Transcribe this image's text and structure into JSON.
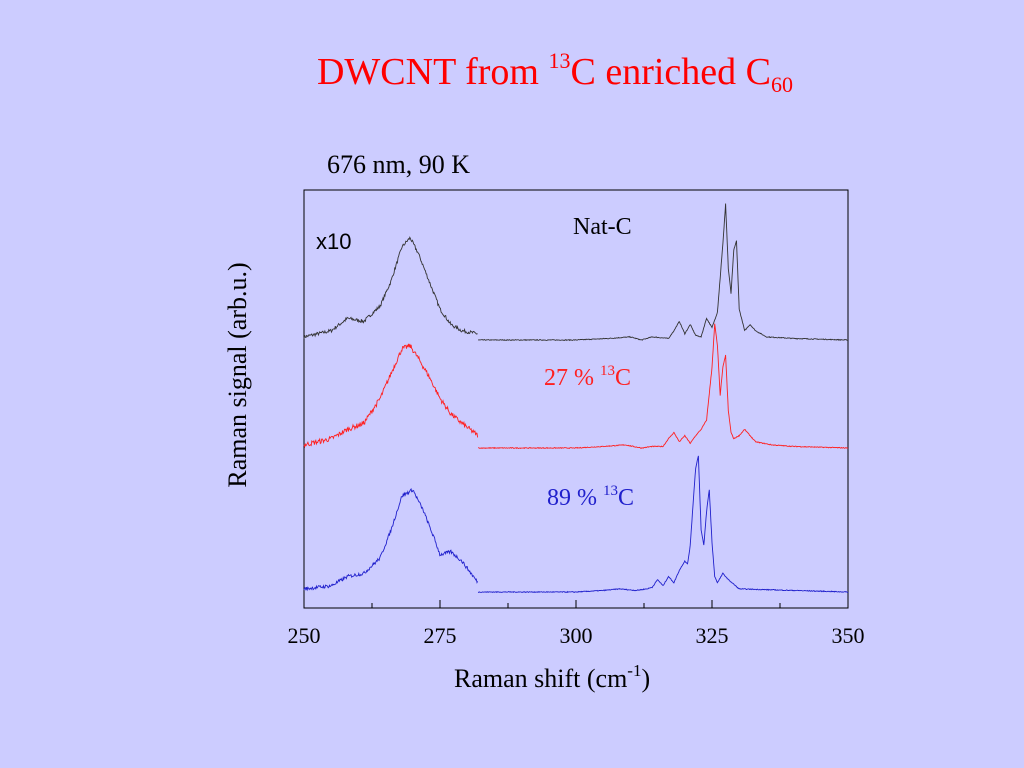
{
  "slide": {
    "title_main": "DWCNT from ",
    "title_sup": "13",
    "title_mid": "C enriched C",
    "title_sub": "60"
  },
  "chart_data": {
    "type": "line",
    "title": "676 nm, 90 K",
    "xlabel": "Raman shift (cm",
    "xlabel_sup": "-1",
    "xlabel_end": ")",
    "ylabel": "Raman signal (arb.u.)",
    "xlim": [
      250,
      350
    ],
    "x_ticks": [
      "250",
      "275",
      "300",
      "325",
      "350"
    ],
    "annotation_scale": "x10",
    "colors": {
      "Nat-C": "#333333",
      "27": "#ff2020",
      "89": "#2020cc"
    },
    "series": [
      {
        "name": "Nat-C",
        "label_prefix": "",
        "label_sup": "",
        "label_suffix": "Nat-C",
        "low_region_x10": {
          "x": [
            250,
            255,
            258,
            261,
            264,
            266,
            268,
            269.5,
            271,
            273,
            275,
            277,
            279,
            282
          ],
          "y": [
            2,
            6,
            14,
            12,
            22,
            38,
            60,
            66,
            56,
            38,
            20,
            10,
            6,
            4
          ]
        },
        "high_region": {
          "x": [
            282,
            300,
            306,
            310,
            312,
            314,
            317,
            318,
            319,
            320,
            321,
            322,
            323,
            324,
            325,
            326,
            326.5,
            327,
            327.5,
            328,
            328.5,
            329,
            329.5,
            330,
            331,
            332,
            333,
            335,
            340,
            350
          ],
          "y": [
            0,
            0,
            1,
            2,
            0,
            2,
            1,
            6,
            12,
            4,
            10,
            3,
            2,
            14,
            8,
            18,
            40,
            62,
            88,
            46,
            30,
            58,
            64,
            20,
            6,
            10,
            6,
            2,
            1,
            0
          ]
        }
      },
      {
        "name": "27 % 13C",
        "label_prefix": "27 % ",
        "label_sup": "13",
        "label_suffix": "C",
        "low_region_x10": {
          "x": [
            250,
            255,
            258,
            261,
            264,
            266,
            268,
            269.5,
            271,
            273,
            275,
            277,
            279,
            282
          ],
          "y": [
            2,
            6,
            12,
            16,
            32,
            48,
            64,
            66,
            58,
            46,
            32,
            22,
            16,
            8
          ]
        },
        "high_region": {
          "x": [
            282,
            300,
            305,
            309,
            312,
            314,
            316,
            317,
            318,
            319,
            320,
            321,
            322,
            323,
            324,
            325,
            325.5,
            326,
            326.5,
            327,
            327.5,
            328,
            328.5,
            329,
            330,
            331,
            333,
            336,
            340,
            350
          ],
          "y": [
            0,
            0,
            1,
            2,
            0,
            1,
            1,
            6,
            10,
            4,
            8,
            3,
            8,
            12,
            18,
            52,
            80,
            66,
            34,
            52,
            60,
            24,
            10,
            6,
            8,
            12,
            4,
            2,
            1,
            0
          ]
        }
      },
      {
        "name": "89 % 13C",
        "label_prefix": "89 % ",
        "label_sup": "13",
        "label_suffix": "C",
        "low_region_x10": {
          "x": [
            250,
            255,
            258,
            261,
            264,
            266,
            268,
            270,
            272,
            274,
            275,
            277,
            279,
            282
          ],
          "y": [
            2,
            4,
            10,
            12,
            22,
            40,
            62,
            66,
            52,
            34,
            24,
            26,
            20,
            6
          ]
        },
        "high_region": {
          "x": [
            282,
            300,
            305,
            308,
            311,
            313,
            314,
            315,
            316,
            317,
            318,
            319,
            320,
            320.5,
            321,
            321.5,
            322,
            322.5,
            323,
            323.5,
            324,
            324.5,
            325,
            325.5,
            326,
            327,
            328,
            330,
            340,
            350
          ],
          "y": [
            0,
            0,
            1,
            2,
            1,
            2,
            3,
            8,
            4,
            10,
            6,
            14,
            20,
            18,
            30,
            56,
            80,
            88,
            40,
            30,
            52,
            66,
            32,
            10,
            6,
            12,
            8,
            2,
            1,
            0
          ]
        }
      }
    ]
  }
}
